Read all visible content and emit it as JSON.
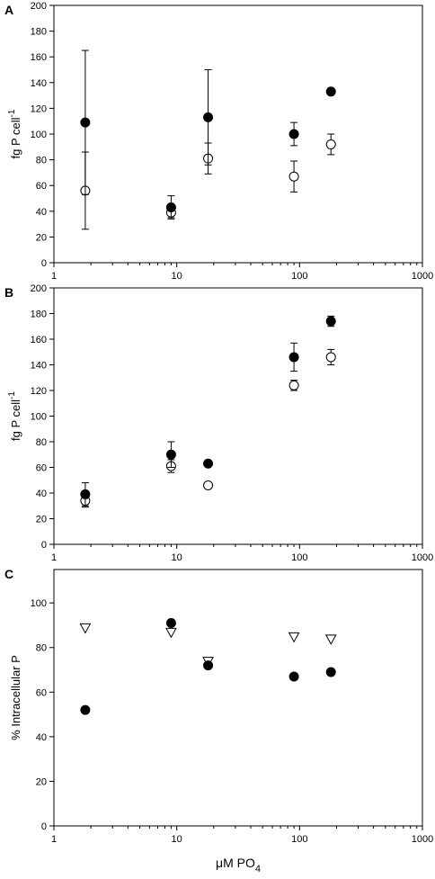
{
  "chart_data": [
    {
      "type": "scatter",
      "panel_label": "A",
      "ylabel": "fg P cell",
      "ylabel_sup": "-1",
      "xscale": "log",
      "xlim": [
        1,
        1000
      ],
      "ylim": [
        0,
        200
      ],
      "xticks": [
        1,
        10,
        100,
        1000
      ],
      "xtick_labels": [
        "1",
        "10",
        "100",
        "1000"
      ],
      "yticks": [
        0,
        20,
        40,
        60,
        80,
        100,
        120,
        140,
        160,
        180,
        200
      ],
      "ytick_labels": [
        "0",
        "20",
        "40",
        "60",
        "80",
        "100",
        "120",
        "140",
        "160",
        "180",
        "200"
      ],
      "grid": false,
      "series": [
        {
          "marker": "filled-circle",
          "x": [
            1.8,
            9,
            18,
            90,
            180
          ],
          "y": [
            109,
            43,
            113,
            100,
            133
          ],
          "err": [
            56,
            9,
            37,
            9,
            2
          ]
        },
        {
          "marker": "open-circle",
          "x": [
            1.8,
            9,
            18,
            90,
            180
          ],
          "y": [
            56,
            39,
            81,
            67,
            92
          ],
          "err": [
            30,
            4,
            12,
            12,
            8
          ]
        }
      ]
    },
    {
      "type": "scatter",
      "panel_label": "B",
      "ylabel": "fg P cell",
      "ylabel_sup": "-1",
      "xscale": "log",
      "xlim": [
        1,
        1000
      ],
      "ylim": [
        0,
        200
      ],
      "xticks": [
        1,
        10,
        100,
        1000
      ],
      "xtick_labels": [
        "1",
        "10",
        "100",
        "1000"
      ],
      "yticks": [
        0,
        20,
        40,
        60,
        80,
        100,
        120,
        140,
        160,
        180,
        200
      ],
      "ytick_labels": [
        "0",
        "20",
        "40",
        "60",
        "80",
        "100",
        "120",
        "140",
        "160",
        "180",
        "200"
      ],
      "grid": false,
      "series": [
        {
          "marker": "filled-circle",
          "x": [
            1.8,
            9,
            18,
            90,
            180
          ],
          "y": [
            39,
            70,
            63,
            146,
            174
          ],
          "err": [
            9,
            10,
            2,
            11,
            4
          ]
        },
        {
          "marker": "open-circle",
          "x": [
            1.8,
            9,
            18,
            90,
            180
          ],
          "y": [
            34,
            61,
            46,
            124,
            146
          ],
          "err": [
            5,
            5,
            2,
            4,
            6
          ]
        }
      ]
    },
    {
      "type": "scatter",
      "panel_label": "C",
      "ylabel": "% Intracellular P",
      "xlabel": "μM PO",
      "xlabel_sub": "4",
      "xscale": "log",
      "xlim": [
        1,
        1000
      ],
      "ylim": [
        0,
        115
      ],
      "xticks": [
        1,
        10,
        100,
        1000
      ],
      "xtick_labels": [
        "1",
        "10",
        "100",
        "1000"
      ],
      "yticks": [
        0,
        20,
        40,
        60,
        80,
        100
      ],
      "ytick_labels": [
        "0",
        "20",
        "40",
        "60",
        "80",
        "100"
      ],
      "grid": false,
      "series": [
        {
          "marker": "filled-circle",
          "x": [
            1.8,
            9,
            18,
            90,
            180
          ],
          "y": [
            52,
            91,
            72,
            67,
            69
          ],
          "err": [
            0,
            0,
            0,
            0,
            0
          ]
        },
        {
          "marker": "open-triangle-down",
          "x": [
            1.8,
            9,
            18,
            90,
            180
          ],
          "y": [
            89,
            87,
            74,
            85,
            84
          ],
          "err": [
            0,
            0,
            0,
            0,
            0
          ]
        }
      ]
    }
  ]
}
